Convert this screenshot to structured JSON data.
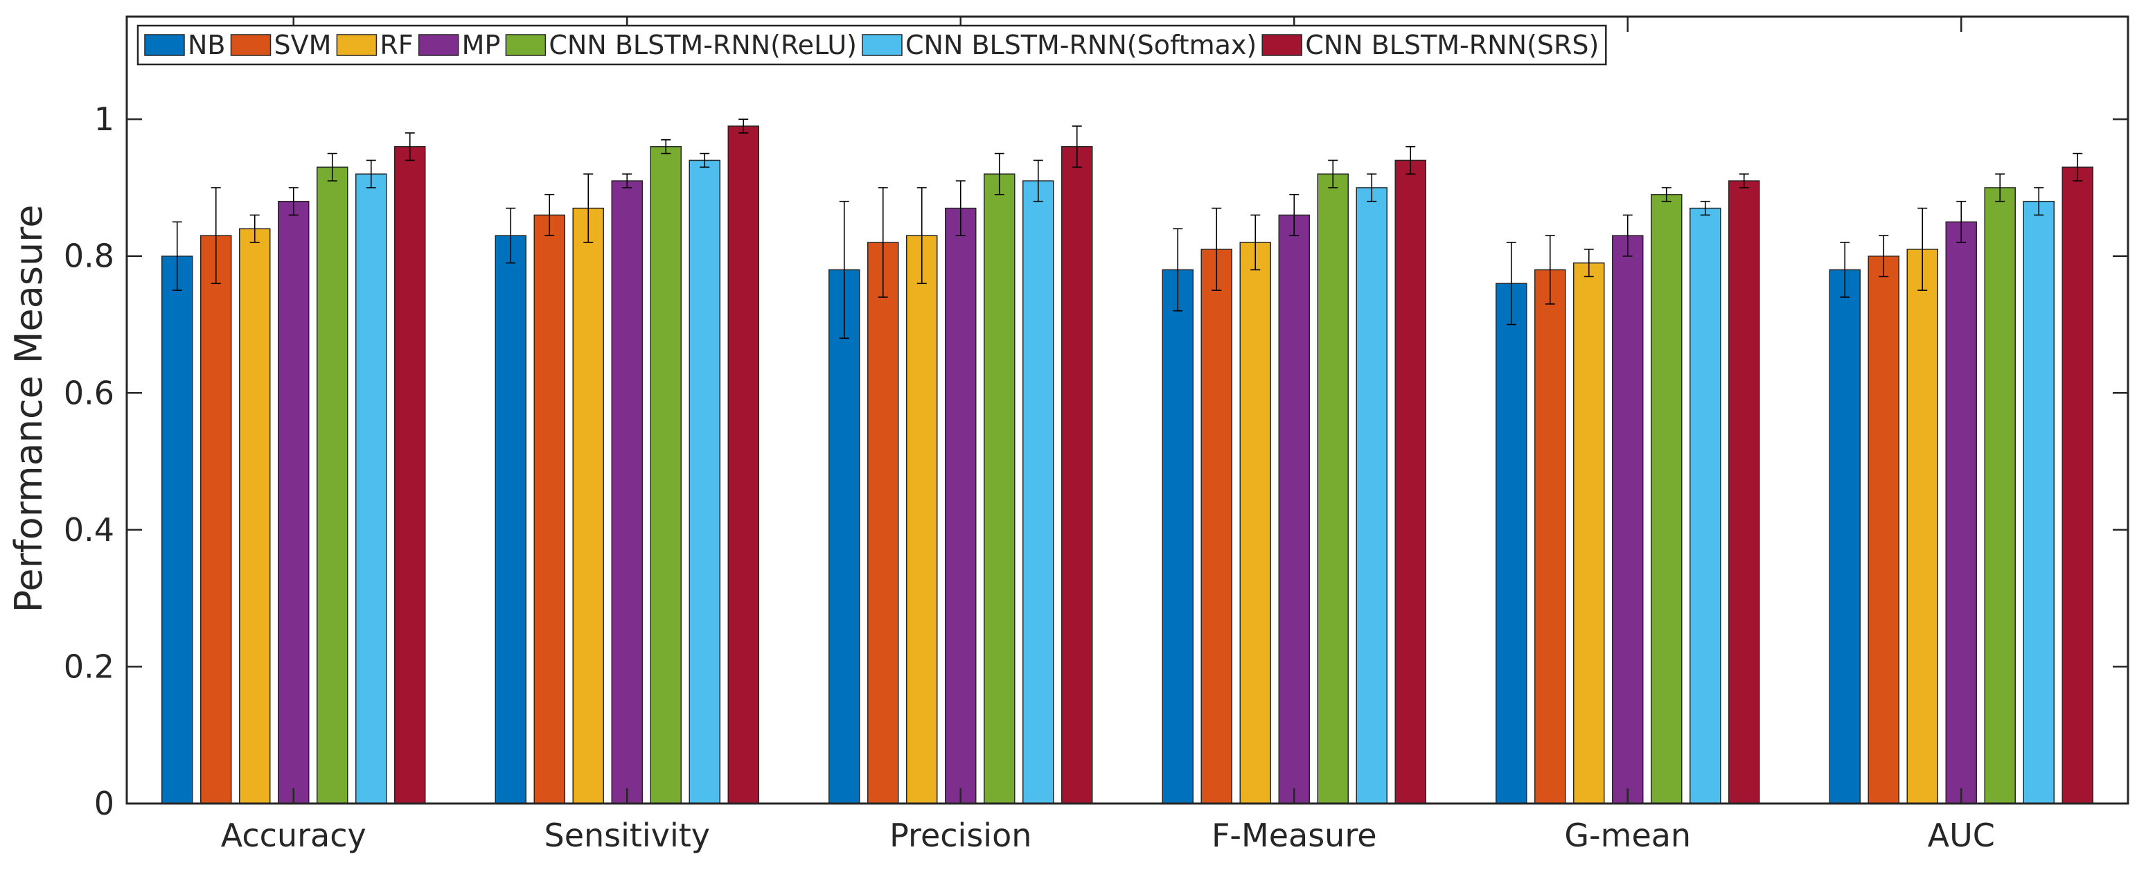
{
  "chart_data": {
    "type": "bar",
    "title": "",
    "xlabel": "",
    "ylabel": "Performance Measure",
    "ylim": [
      0,
      1.15
    ],
    "yticks": [
      0,
      0.2,
      0.4,
      0.6,
      0.8,
      1
    ],
    "ytick_labels": [
      "0",
      "0.2",
      "0.4",
      "0.6",
      "0.8",
      "1"
    ],
    "grid": false,
    "legend_position": "top-left",
    "categories": [
      "Accuracy",
      "Sensitivity",
      "Precision",
      "F-Measure",
      "G-mean",
      "AUC"
    ],
    "series": [
      {
        "name": "NB",
        "color": "#0072BD",
        "values": [
          0.8,
          0.83,
          0.78,
          0.78,
          0.76,
          0.78
        ],
        "errors": [
          0.05,
          0.04,
          0.1,
          0.06,
          0.06,
          0.04
        ]
      },
      {
        "name": "SVM",
        "color": "#D95319",
        "values": [
          0.83,
          0.86,
          0.82,
          0.81,
          0.78,
          0.8
        ],
        "errors": [
          0.07,
          0.03,
          0.08,
          0.06,
          0.05,
          0.03
        ]
      },
      {
        "name": "RF",
        "color": "#EDB120",
        "values": [
          0.84,
          0.87,
          0.83,
          0.82,
          0.79,
          0.81
        ],
        "errors": [
          0.02,
          0.05,
          0.07,
          0.04,
          0.02,
          0.06
        ]
      },
      {
        "name": "MP",
        "color": "#7E2F8E",
        "values": [
          0.88,
          0.91,
          0.87,
          0.86,
          0.83,
          0.85
        ],
        "errors": [
          0.02,
          0.01,
          0.04,
          0.03,
          0.03,
          0.03
        ]
      },
      {
        "name": "CNN BLSTM-RNN(ReLU)",
        "color": "#77AC30",
        "values": [
          0.93,
          0.96,
          0.92,
          0.92,
          0.89,
          0.9
        ],
        "errors": [
          0.02,
          0.01,
          0.03,
          0.02,
          0.01,
          0.02
        ]
      },
      {
        "name": "CNN BLSTM-RNN(Softmax)",
        "color": "#4DBEEE",
        "values": [
          0.92,
          0.94,
          0.91,
          0.9,
          0.87,
          0.88
        ],
        "errors": [
          0.02,
          0.01,
          0.03,
          0.02,
          0.01,
          0.02
        ]
      },
      {
        "name": "CNN BLSTM-RNN(SRS)",
        "color": "#A2142F",
        "values": [
          0.96,
          0.99,
          0.96,
          0.94,
          0.91,
          0.93
        ],
        "errors": [
          0.02,
          0.01,
          0.03,
          0.02,
          0.01,
          0.02
        ]
      }
    ]
  }
}
